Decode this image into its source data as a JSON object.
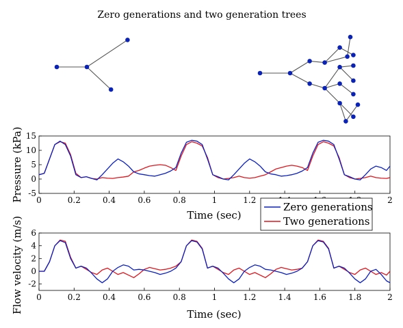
{
  "title": "Zero generations and two generation trees",
  "colors": {
    "zero": "#0a1fbf",
    "two": "#e0141c",
    "tree": "#142c9c",
    "node": "#0a22b5"
  },
  "tree_zero": {
    "nodes": [
      [
        0,
        0
      ],
      [
        1,
        0
      ],
      [
        2.35,
        0.9
      ],
      [
        1.8,
        -0.75
      ]
    ],
    "edges": [
      [
        0,
        1
      ],
      [
        1,
        2
      ],
      [
        1,
        3
      ]
    ]
  },
  "tree_two": {
    "nodes": [
      [
        0,
        0
      ],
      [
        1,
        0
      ],
      [
        1.65,
        -0.35
      ],
      [
        1.65,
        0.4
      ],
      [
        2.15,
        -0.5
      ],
      [
        2.15,
        0.35
      ],
      [
        2.65,
        -1.0
      ],
      [
        2.65,
        -0.35
      ],
      [
        2.65,
        0.2
      ],
      [
        2.65,
        0.85
      ],
      [
        2.85,
        -1.6
      ],
      [
        2.9,
        0.55
      ],
      [
        3.1,
        -1.45
      ],
      [
        3.1,
        -0.7
      ],
      [
        3.1,
        -0.25
      ],
      [
        3.1,
        0.25
      ],
      [
        3.1,
        0.6
      ],
      [
        3.25,
        -1.05
      ],
      [
        3.0,
        1.2
      ]
    ],
    "edges": [
      [
        0,
        1
      ],
      [
        1,
        2
      ],
      [
        1,
        3
      ],
      [
        2,
        4
      ],
      [
        3,
        5
      ],
      [
        4,
        6
      ],
      [
        4,
        7
      ],
      [
        4,
        8
      ],
      [
        5,
        9
      ],
      [
        6,
        10
      ],
      [
        6,
        12
      ],
      [
        7,
        13
      ],
      [
        8,
        14
      ],
      [
        8,
        15
      ],
      [
        9,
        16
      ],
      [
        5,
        11
      ],
      [
        10,
        17
      ],
      [
        11,
        18
      ]
    ]
  },
  "chart_data": [
    {
      "type": "line",
      "xlabel": "Time (sec)",
      "ylabel": "Pressure (kPa)",
      "xlim": [
        0,
        2
      ],
      "ylim": [
        -5,
        15
      ],
      "xticks": [
        "0",
        "0.2",
        "0.4",
        "0.6",
        "0.8",
        "1",
        "1.2",
        "1.4",
        "1.6",
        "1.8",
        "2"
      ],
      "yticks": [
        "-5",
        "0",
        "5",
        "10",
        "15"
      ],
      "legend": {
        "position": "bottom-right",
        "entries": [
          "Zero generations",
          "Two generations"
        ]
      },
      "series": [
        {
          "name": "Zero generations",
          "x": [
            0,
            0.03,
            0.06,
            0.09,
            0.12,
            0.15,
            0.18,
            0.21,
            0.24,
            0.27,
            0.3,
            0.33,
            0.36,
            0.39,
            0.42,
            0.45,
            0.48,
            0.51,
            0.54,
            0.57,
            0.6,
            0.63,
            0.66,
            0.69,
            0.72,
            0.75,
            0.78,
            0.81,
            0.84,
            0.87,
            0.9,
            0.93,
            0.96,
            0.99,
            1.02,
            1.05,
            1.08,
            1.11,
            1.14,
            1.17,
            1.2,
            1.23,
            1.26,
            1.29,
            1.32,
            1.35,
            1.38,
            1.41,
            1.44,
            1.47,
            1.5,
            1.53,
            1.56,
            1.59,
            1.62,
            1.65,
            1.68,
            1.71,
            1.74,
            1.77,
            1.8,
            1.83,
            1.86,
            1.89,
            1.92,
            1.95,
            1.98,
            2.0
          ],
          "y": [
            1.5,
            2.0,
            7.0,
            12.0,
            13.2,
            12.0,
            8.0,
            1.5,
            0.5,
            0.8,
            0.2,
            -0.3,
            1.5,
            3.5,
            5.5,
            7.0,
            6.0,
            4.5,
            2.5,
            1.8,
            1.5,
            1.2,
            1.0,
            1.5,
            2.0,
            2.8,
            4.0,
            9.0,
            12.8,
            13.5,
            13.2,
            12.0,
            7.0,
            1.5,
            0.8,
            0.0,
            -0.3,
            1.5,
            3.5,
            5.5,
            7.0,
            6.0,
            4.5,
            2.5,
            1.8,
            1.5,
            1.0,
            1.2,
            1.5,
            2.0,
            2.8,
            4.0,
            9.0,
            12.8,
            13.5,
            13.2,
            12.0,
            7.0,
            1.5,
            0.8,
            0.0,
            -0.3,
            1.5,
            3.5,
            4.5,
            4.0,
            3.0,
            4.5
          ]
        },
        {
          "name": "Two generations",
          "x": [
            0,
            0.03,
            0.06,
            0.09,
            0.12,
            0.15,
            0.18,
            0.21,
            0.24,
            0.27,
            0.3,
            0.33,
            0.36,
            0.39,
            0.42,
            0.45,
            0.48,
            0.51,
            0.54,
            0.57,
            0.6,
            0.63,
            0.66,
            0.69,
            0.72,
            0.75,
            0.78,
            0.81,
            0.84,
            0.87,
            0.9,
            0.93,
            0.96,
            0.99,
            1.02,
            1.05,
            1.08,
            1.11,
            1.14,
            1.17,
            1.2,
            1.23,
            1.26,
            1.29,
            1.32,
            1.35,
            1.38,
            1.41,
            1.44,
            1.47,
            1.5,
            1.53,
            1.56,
            1.59,
            1.62,
            1.65,
            1.68,
            1.71,
            1.74,
            1.77,
            1.8,
            1.83,
            1.86,
            1.89,
            1.92,
            1.95,
            1.98,
            2.0
          ],
          "y": [
            1.5,
            2.0,
            7.0,
            12.0,
            13.0,
            12.5,
            8.5,
            2.0,
            0.5,
            0.8,
            0.2,
            0.0,
            0.5,
            0.3,
            0.2,
            0.5,
            0.7,
            1.0,
            2.5,
            3.0,
            3.8,
            4.5,
            4.8,
            5.0,
            4.8,
            4.0,
            3.0,
            8.0,
            12.0,
            13.0,
            12.5,
            11.5,
            7.5,
            1.5,
            0.5,
            0.0,
            0.2,
            0.5,
            1.0,
            0.5,
            0.3,
            0.5,
            1.0,
            1.5,
            2.5,
            3.5,
            4.0,
            4.5,
            4.8,
            4.5,
            4.0,
            3.0,
            8.0,
            12.0,
            13.0,
            12.5,
            11.5,
            7.5,
            1.5,
            0.5,
            0.0,
            0.2,
            0.5,
            1.0,
            0.5,
            0.3,
            0.2,
            0.5
          ]
        }
      ]
    },
    {
      "type": "line",
      "xlabel": "Time (sec)",
      "ylabel": "Flow velocity (m/s)",
      "xlim": [
        0,
        2
      ],
      "ylim": [
        -3,
        6
      ],
      "xticks": [
        "0",
        "0.2",
        "0.4",
        "0.6",
        "0.8",
        "1",
        "1.2",
        "1.4",
        "1.6",
        "1.8",
        "2"
      ],
      "yticks": [
        "-2",
        "0",
        "2",
        "4",
        "6"
      ],
      "series": [
        {
          "name": "Zero generations",
          "x": [
            0,
            0.03,
            0.06,
            0.09,
            0.12,
            0.15,
            0.18,
            0.21,
            0.24,
            0.27,
            0.3,
            0.33,
            0.36,
            0.39,
            0.42,
            0.45,
            0.48,
            0.51,
            0.54,
            0.57,
            0.6,
            0.63,
            0.66,
            0.69,
            0.72,
            0.75,
            0.78,
            0.81,
            0.84,
            0.87,
            0.9,
            0.93,
            0.96,
            0.99,
            1.02,
            1.05,
            1.08,
            1.11,
            1.14,
            1.17,
            1.2,
            1.23,
            1.26,
            1.29,
            1.32,
            1.35,
            1.38,
            1.41,
            1.44,
            1.47,
            1.5,
            1.53,
            1.56,
            1.59,
            1.62,
            1.65,
            1.68,
            1.71,
            1.74,
            1.77,
            1.8,
            1.83,
            1.86,
            1.89,
            1.92,
            1.95,
            1.98,
            2.0
          ],
          "y": [
            0.0,
            0.0,
            1.5,
            4.0,
            4.8,
            4.5,
            2.0,
            0.5,
            0.8,
            0.5,
            -0.3,
            -1.2,
            -1.8,
            -1.2,
            0.0,
            0.6,
            1.0,
            0.8,
            0.2,
            0.3,
            0.2,
            0.0,
            -0.2,
            -0.5,
            -0.3,
            0.0,
            0.5,
            1.5,
            4.0,
            4.8,
            4.6,
            3.5,
            0.5,
            0.8,
            0.5,
            -0.3,
            -1.2,
            -1.8,
            -1.2,
            0.0,
            0.6,
            1.0,
            0.8,
            0.3,
            0.2,
            0.0,
            -0.2,
            -0.5,
            -0.3,
            0.0,
            0.5,
            1.5,
            4.0,
            4.8,
            4.6,
            3.5,
            0.5,
            0.8,
            0.5,
            -0.3,
            -1.2,
            -1.8,
            -1.2,
            0.0,
            0.3,
            -0.5,
            -1.5,
            -1.8
          ]
        },
        {
          "name": "Two generations",
          "x": [
            0,
            0.03,
            0.06,
            0.09,
            0.12,
            0.15,
            0.18,
            0.21,
            0.24,
            0.27,
            0.3,
            0.33,
            0.36,
            0.39,
            0.42,
            0.45,
            0.48,
            0.51,
            0.54,
            0.57,
            0.6,
            0.63,
            0.66,
            0.69,
            0.72,
            0.75,
            0.78,
            0.81,
            0.84,
            0.87,
            0.9,
            0.93,
            0.96,
            0.99,
            1.02,
            1.05,
            1.08,
            1.11,
            1.14,
            1.17,
            1.2,
            1.23,
            1.26,
            1.29,
            1.32,
            1.35,
            1.38,
            1.41,
            1.44,
            1.47,
            1.5,
            1.53,
            1.56,
            1.59,
            1.62,
            1.65,
            1.68,
            1.71,
            1.74,
            1.77,
            1.8,
            1.83,
            1.86,
            1.89,
            1.92,
            1.95,
            1.98,
            2.0
          ],
          "y": [
            0.0,
            0.0,
            1.5,
            4.0,
            4.9,
            4.7,
            2.2,
            0.5,
            0.8,
            0.3,
            -0.2,
            -0.5,
            0.2,
            0.5,
            0.0,
            -0.5,
            -0.2,
            -0.6,
            -1.0,
            -0.4,
            0.3,
            0.6,
            0.4,
            0.2,
            0.3,
            0.5,
            0.8,
            1.5,
            4.0,
            4.9,
            4.7,
            3.6,
            0.5,
            0.8,
            0.3,
            -0.2,
            -0.5,
            0.2,
            0.5,
            0.0,
            -0.5,
            -0.2,
            -0.6,
            -1.0,
            -0.4,
            0.3,
            0.6,
            0.4,
            0.2,
            0.3,
            0.5,
            1.5,
            4.0,
            4.9,
            4.7,
            3.6,
            0.5,
            0.8,
            0.3,
            -0.2,
            -0.5,
            0.2,
            0.5,
            0.0,
            -0.5,
            -0.2,
            -0.6,
            0.0
          ]
        }
      ]
    }
  ]
}
